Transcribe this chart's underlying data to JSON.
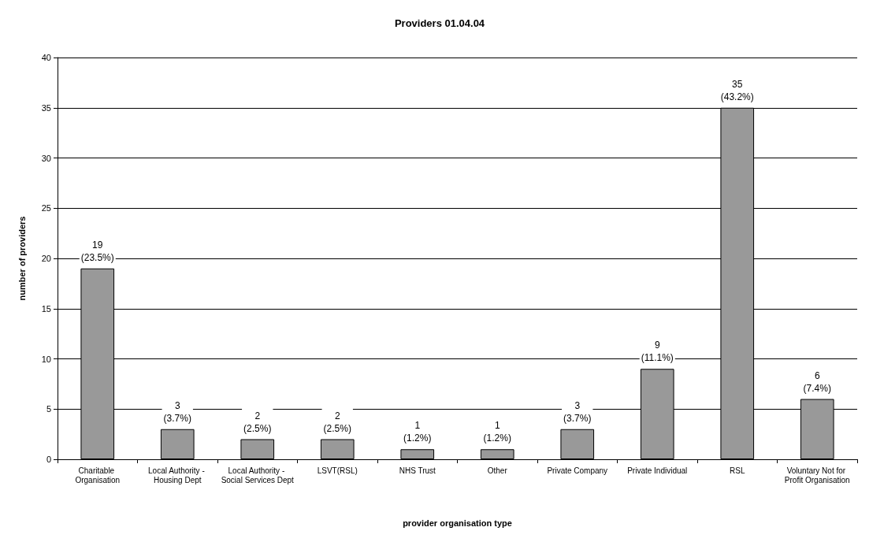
{
  "chart_data": {
    "type": "bar",
    "title": "Providers 01.04.04",
    "xlabel": "provider organisation type",
    "ylabel": "number of providers",
    "categories": [
      "Charitable Organisation",
      "Local Authority - Housing Dept",
      "Local Authority - Social Services Dept",
      "LSVT(RSL)",
      "NHS Trust",
      "Other",
      "Private Company",
      "Private Individual",
      "RSL",
      "Voluntary Not for Profit Organisation"
    ],
    "values": [
      19,
      3,
      2,
      2,
      1,
      1,
      3,
      9,
      35,
      6
    ],
    "value_labels": [
      "19\n(23.5%)",
      "3\n(3.7%)",
      "2\n(2.5%)",
      "2\n(2.5%)",
      "1\n(1.2%)",
      "1\n(1.2%)",
      "3\n(3.7%)",
      "9\n(11.1%)",
      "35\n(43.2%)",
      "6\n(7.4%)"
    ],
    "color": "#999999",
    "ylim": [
      0,
      40
    ],
    "yticks": [
      0,
      5,
      10,
      15,
      20,
      25,
      30,
      35,
      40
    ],
    "grid": "y"
  }
}
